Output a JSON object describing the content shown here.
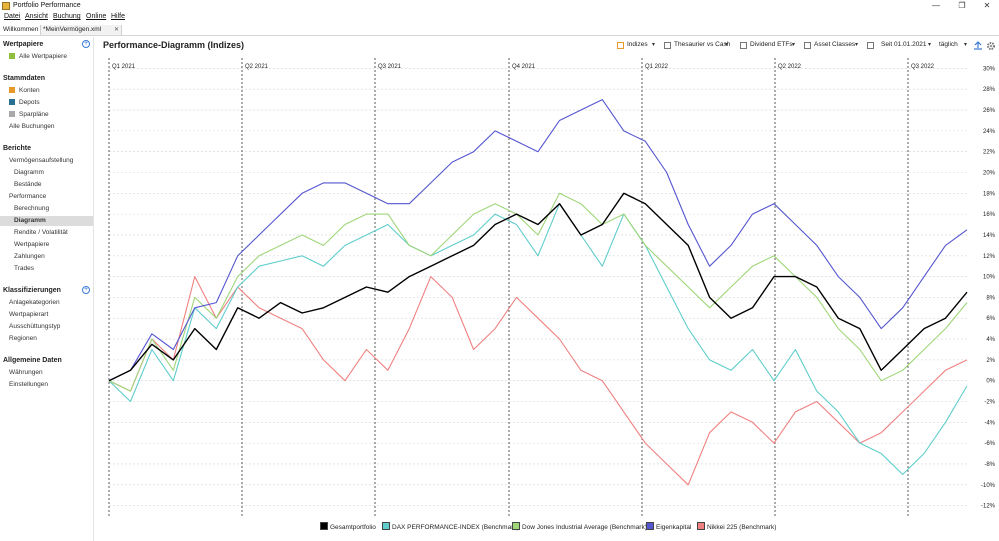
{
  "window": {
    "title": "Portfolio Performance",
    "minimize": "—",
    "maximize": "❐",
    "close": "✕"
  },
  "menu": [
    "Datei",
    "Ansicht",
    "Buchung",
    "Online",
    "Hilfe"
  ],
  "tabs": [
    {
      "label": "Willkommen"
    },
    {
      "label": "*MeinVermögen.xml"
    }
  ],
  "tab_close": "✕",
  "sidebar": {
    "wertpapiere": {
      "title": "Wertpapiere",
      "items": [
        "Alle Wertpapiere"
      ]
    },
    "stammdaten": {
      "title": "Stammdaten",
      "items": [
        "Konten",
        "Depots",
        "Sparpläne",
        "Alle Buchungen"
      ]
    },
    "berichte": {
      "title": "Berichte",
      "items": [
        "Vermögensaufstellung",
        "Diagramm",
        "Bestände",
        "Performance",
        "Berechnung",
        "Diagramm",
        "Rendite / Volatilität",
        "Wertpapiere",
        "Zahlungen",
        "Trades"
      ]
    },
    "klassifizierungen": {
      "title": "Klassifizierungen",
      "items": [
        "Anlagekategorien",
        "Wertpapierart",
        "Ausschüttungstyp",
        "Regionen"
      ]
    },
    "allgemeine": {
      "title": "Allgemeine Daten",
      "items": [
        "Währungen",
        "Einstellungen"
      ]
    },
    "colors": {
      "wertpapiere": "#8fbf3f",
      "konten": "#e79a2a",
      "depots": "#2a6f8f",
      "sparplaene": "#a9a9a9"
    }
  },
  "main": {
    "title": "Performance-Diagramm (Indizes)",
    "toolbar": {
      "indizes": "Indizes",
      "thesaurier": "Thesaurier vs Cash",
      "dividend": "Dividend ETFs",
      "asset": "Asset Classes",
      "period": "Seit 01.01.2021",
      "interval": "täglich",
      "caret": "▾",
      "export_icon": "export-icon",
      "settings_icon": "gear-icon"
    }
  },
  "chart_data": {
    "type": "line",
    "x_labels": [
      "Q1 2021",
      "Q2 2021",
      "Q3 2021",
      "Q4 2021",
      "Q1 2022",
      "Q2 2022",
      "Q3 2022"
    ],
    "x_range": [
      "2021-01-01",
      "2022-09-30"
    ],
    "ylim": [
      -13,
      31
    ],
    "y_ticks": [
      "30%",
      "28%",
      "26%",
      "24%",
      "22%",
      "20%",
      "18%",
      "16%",
      "14%",
      "12%",
      "10%",
      "8%",
      "6%",
      "4%",
      "2%",
      "0%",
      "-2%",
      "-4%",
      "-6%",
      "-8%",
      "-10%",
      "-12%"
    ],
    "y_axis_position": "right",
    "grid": true,
    "legend_position": "bottom",
    "series": [
      {
        "name": "Gesamtportfolio",
        "color": "#000000",
        "values": [
          0,
          1,
          3.5,
          2,
          5,
          3,
          7,
          6,
          7.5,
          6.5,
          7,
          8,
          9,
          8.5,
          10,
          11,
          12,
          13,
          15,
          16,
          15,
          17,
          14,
          15,
          18,
          17,
          15,
          13,
          8,
          6,
          7,
          10,
          10,
          9,
          6,
          5,
          1,
          3,
          5,
          6,
          8.5
        ]
      },
      {
        "name": "DAX PERFORMANCE-INDEX (Benchmark)",
        "color": "#5fcdcb",
        "values": [
          0,
          -2,
          3,
          0,
          7,
          5,
          9,
          11,
          11.5,
          12,
          11,
          13,
          14,
          15,
          13,
          12,
          13,
          14,
          16,
          15,
          12,
          17,
          14,
          11,
          16,
          13,
          9,
          5,
          2,
          1,
          3,
          0,
          3,
          -1,
          -3,
          -6,
          -7,
          -9,
          -7,
          -4,
          -0.5
        ]
      },
      {
        "name": "Dow Jones Industrial Average (Benchmark)",
        "color": "#9fd67a",
        "values": [
          0,
          -1,
          4,
          1,
          8,
          6,
          10,
          12,
          13,
          14,
          13,
          15,
          16,
          16,
          13,
          12,
          14,
          16,
          17,
          16,
          14,
          18,
          17,
          15,
          16,
          13,
          11,
          9,
          7,
          9,
          11,
          12,
          10,
          8,
          5,
          3,
          0,
          1,
          3,
          5,
          7.5
        ]
      },
      {
        "name": "Eigenkapital",
        "color": "#5555d0",
        "values": [
          0,
          1,
          4.5,
          3,
          7,
          7.5,
          12,
          14,
          16,
          18,
          19,
          19,
          18,
          17,
          17,
          19,
          21,
          22,
          24,
          23,
          22,
          25,
          26,
          27,
          24,
          23,
          20,
          15,
          11,
          13,
          16,
          17,
          15,
          13,
          10,
          8,
          5,
          7,
          10,
          13,
          14.5
        ]
      },
      {
        "name": "Nikkei 225 (Benchmark)",
        "color": "#f08080",
        "values": [
          0,
          -1,
          4,
          2,
          10,
          6,
          9,
          7,
          6,
          5,
          2,
          0,
          3,
          1,
          5,
          10,
          8,
          3,
          5,
          8,
          6,
          4,
          1,
          0,
          -3,
          -6,
          -8,
          -10,
          -5,
          -3,
          -4,
          -6,
          -3,
          -2,
          -4,
          -6,
          -5,
          -3,
          -1,
          1,
          2
        ]
      }
    ]
  }
}
